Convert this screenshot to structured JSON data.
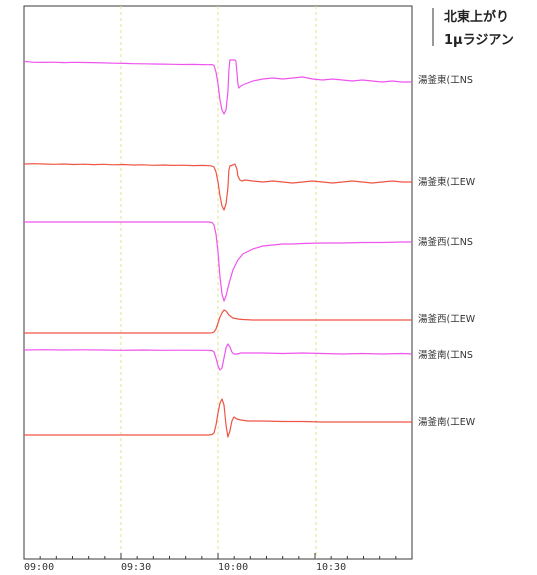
{
  "chart_data": {
    "type": "line",
    "title": "",
    "xlabel": "",
    "ylabel": "",
    "x_ticks": [
      "09:00",
      "09:30",
      "10:00",
      "10:30"
    ],
    "scale_label": {
      "line1": "北東上がり",
      "line2": "1μラジアン"
    },
    "series": [
      {
        "name": "湯釜東(工NS",
        "color": "#ee55ee",
        "points": [
          [
            0,
            0.6
          ],
          [
            5,
            0.2
          ],
          [
            10,
            -0.3
          ],
          [
            20,
            -0.4
          ],
          [
            30,
            -0.2
          ],
          [
            40,
            -0.6
          ],
          [
            50,
            -0.3
          ],
          [
            60,
            -0.5
          ],
          [
            70,
            -0.6
          ],
          [
            80,
            -0.9
          ],
          [
            90,
            -1.2
          ],
          [
            100,
            -1.4
          ],
          [
            110,
            -1.7
          ],
          [
            120,
            -1.8
          ],
          [
            130,
            -2.0
          ],
          [
            140,
            -2.1
          ],
          [
            150,
            -2.3
          ],
          [
            160,
            -2.5
          ],
          [
            170,
            -2.4
          ],
          [
            180,
            -2.6
          ],
          [
            186,
            -2.7
          ],
          [
            189,
            -2.6
          ],
          [
            191,
            -3.5
          ],
          [
            193,
            -10
          ],
          [
            195,
            -22
          ],
          [
            197,
            -38
          ],
          [
            199,
            -48
          ],
          [
            201,
            -52
          ],
          [
            203,
            -48
          ],
          [
            205,
            -30
          ],
          [
            206,
            -8
          ],
          [
            207,
            2
          ],
          [
            212,
            2
          ],
          [
            213,
            1
          ],
          [
            214,
            -10
          ],
          [
            215,
            -22
          ],
          [
            216,
            -26
          ],
          [
            218,
            -24
          ],
          [
            222,
            -22
          ],
          [
            230,
            -19
          ],
          [
            240,
            -17
          ],
          [
            250,
            -16
          ],
          [
            260,
            -17
          ],
          [
            270,
            -16
          ],
          [
            280,
            -15
          ],
          [
            290,
            -17
          ],
          [
            300,
            -18
          ],
          [
            310,
            -17
          ],
          [
            320,
            -18
          ],
          [
            330,
            -19
          ],
          [
            340,
            -18
          ],
          [
            350,
            -19
          ],
          [
            360,
            -20
          ],
          [
            370,
            -19
          ],
          [
            380,
            -20
          ],
          [
            390,
            -20
          ]
        ]
      },
      {
        "name": "湯釜東(工EW",
        "color": "#ee5544",
        "points": [
          [
            0,
            0
          ],
          [
            10,
            0.3
          ],
          [
            20,
            0
          ],
          [
            30,
            -0.3
          ],
          [
            40,
            0
          ],
          [
            50,
            -0.5
          ],
          [
            60,
            -0.2
          ],
          [
            70,
            -0.6
          ],
          [
            80,
            -0.3
          ],
          [
            90,
            -0.8
          ],
          [
            100,
            -0.5
          ],
          [
            110,
            -1.0
          ],
          [
            120,
            -0.8
          ],
          [
            130,
            -1.3
          ],
          [
            140,
            -1.0
          ],
          [
            150,
            -1.4
          ],
          [
            160,
            -1.2
          ],
          [
            170,
            -1.6
          ],
          [
            180,
            -1.4
          ],
          [
            188,
            -1.8
          ],
          [
            191,
            -3
          ],
          [
            193,
            -8
          ],
          [
            195,
            -18
          ],
          [
            197,
            -32
          ],
          [
            199,
            -42
          ],
          [
            201,
            -46
          ],
          [
            203,
            -40
          ],
          [
            205,
            -24
          ],
          [
            206,
            -6
          ],
          [
            207,
            -2
          ],
          [
            210,
            -1
          ],
          [
            212,
            0
          ],
          [
            214,
            -5
          ],
          [
            215,
            -12
          ],
          [
            217,
            -16
          ],
          [
            219,
            -17
          ],
          [
            222,
            -16
          ],
          [
            230,
            -17
          ],
          [
            240,
            -18
          ],
          [
            250,
            -17
          ],
          [
            260,
            -18
          ],
          [
            270,
            -19
          ],
          [
            280,
            -18
          ],
          [
            290,
            -17
          ],
          [
            300,
            -18
          ],
          [
            310,
            -19
          ],
          [
            320,
            -18
          ],
          [
            330,
            -17
          ],
          [
            340,
            -18
          ],
          [
            350,
            -19
          ],
          [
            360,
            -18
          ],
          [
            370,
            -17
          ],
          [
            380,
            -18
          ],
          [
            390,
            -18
          ]
        ]
      },
      {
        "name": "湯釜西(工NS",
        "color": "#ee55ee",
        "points": [
          [
            0,
            0
          ],
          [
            50,
            0
          ],
          [
            100,
            0
          ],
          [
            150,
            0
          ],
          [
            186,
            0
          ],
          [
            189,
            -0.5
          ],
          [
            191,
            -3
          ],
          [
            193,
            -12
          ],
          [
            195,
            -30
          ],
          [
            197,
            -55
          ],
          [
            199,
            -72
          ],
          [
            201,
            -79
          ],
          [
            203,
            -74
          ],
          [
            206,
            -62
          ],
          [
            210,
            -48
          ],
          [
            215,
            -38
          ],
          [
            220,
            -32
          ],
          [
            230,
            -27
          ],
          [
            240,
            -24
          ],
          [
            250,
            -23
          ],
          [
            260,
            -22
          ],
          [
            270,
            -22
          ],
          [
            280,
            -21.5
          ],
          [
            300,
            -21
          ],
          [
            320,
            -21
          ],
          [
            340,
            -20.5
          ],
          [
            360,
            -20.5
          ],
          [
            380,
            -20
          ],
          [
            390,
            -20
          ]
        ]
      },
      {
        "name": "湯釜西(工EW",
        "color": "#ee5544",
        "points": [
          [
            0,
            0
          ],
          [
            50,
            0
          ],
          [
            100,
            0
          ],
          [
            150,
            0
          ],
          [
            186,
            0
          ],
          [
            189,
            0.2
          ],
          [
            191,
            1
          ],
          [
            193,
            4
          ],
          [
            195,
            10
          ],
          [
            197,
            16
          ],
          [
            199,
            20
          ],
          [
            201,
            23
          ],
          [
            203,
            22
          ],
          [
            206,
            18
          ],
          [
            210,
            15
          ],
          [
            215,
            14
          ],
          [
            220,
            13.5
          ],
          [
            230,
            13
          ],
          [
            240,
            13
          ],
          [
            260,
            13
          ],
          [
            280,
            13
          ],
          [
            300,
            13
          ],
          [
            320,
            13
          ],
          [
            340,
            13
          ],
          [
            360,
            13
          ],
          [
            380,
            13
          ],
          [
            390,
            13
          ]
        ]
      },
      {
        "name": "湯釜南(工NS",
        "color": "#ee55ee",
        "points": [
          [
            0,
            0
          ],
          [
            20,
            0.3
          ],
          [
            40,
            0
          ],
          [
            60,
            0.2
          ],
          [
            80,
            0
          ],
          [
            100,
            -0.3
          ],
          [
            120,
            0
          ],
          [
            140,
            -0.3
          ],
          [
            160,
            -0.2
          ],
          [
            186,
            -0.3
          ],
          [
            189,
            -0.5
          ],
          [
            191,
            -2
          ],
          [
            193,
            -8
          ],
          [
            195,
            -16
          ],
          [
            197,
            -20
          ],
          [
            199,
            -18
          ],
          [
            201,
            -8
          ],
          [
            203,
            2
          ],
          [
            205,
            6
          ],
          [
            207,
            3
          ],
          [
            209,
            -2
          ],
          [
            211,
            -4
          ],
          [
            214,
            -4
          ],
          [
            218,
            -3
          ],
          [
            225,
            -3
          ],
          [
            240,
            -3
          ],
          [
            260,
            -3.5
          ],
          [
            280,
            -3
          ],
          [
            300,
            -3.5
          ],
          [
            320,
            -4
          ],
          [
            340,
            -3.5
          ],
          [
            360,
            -4
          ],
          [
            380,
            -3.5
          ],
          [
            390,
            -4
          ]
        ]
      },
      {
        "name": "湯釜南(工EW",
        "color": "#ee5544",
        "points": [
          [
            0,
            0
          ],
          [
            50,
            0
          ],
          [
            100,
            0
          ],
          [
            150,
            0
          ],
          [
            186,
            0
          ],
          [
            189,
            0.5
          ],
          [
            191,
            2
          ],
          [
            193,
            10
          ],
          [
            195,
            22
          ],
          [
            197,
            32
          ],
          [
            199,
            36
          ],
          [
            201,
            30
          ],
          [
            203,
            10
          ],
          [
            205,
            -2
          ],
          [
            207,
            4
          ],
          [
            209,
            14
          ],
          [
            211,
            18
          ],
          [
            214,
            16
          ],
          [
            218,
            15
          ],
          [
            225,
            14
          ],
          [
            240,
            14
          ],
          [
            260,
            13.5
          ],
          [
            280,
            13.5
          ],
          [
            300,
            13
          ],
          [
            320,
            13
          ],
          [
            340,
            13
          ],
          [
            360,
            13
          ],
          [
            380,
            13
          ],
          [
            390,
            13
          ]
        ]
      }
    ]
  }
}
